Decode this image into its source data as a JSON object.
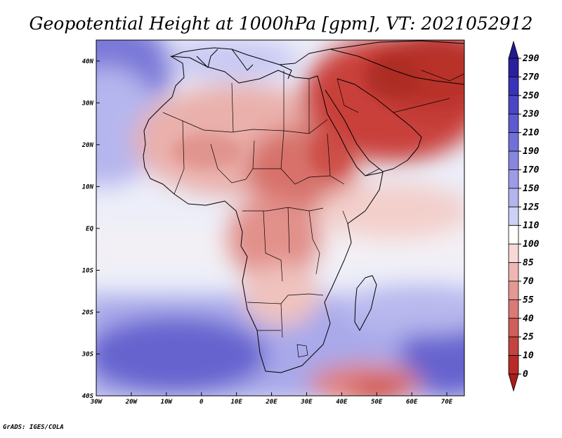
{
  "title": "Geopotential Height at 1000hPa [gpm], VT: 2021052912",
  "credit": "GrADS: IGES/COLA",
  "map": {
    "lon_range": [
      -30,
      75
    ],
    "lat_range": [
      -40,
      45
    ],
    "x_ticks": [
      "30W",
      "20W",
      "10W",
      "0",
      "10E",
      "20E",
      "30E",
      "40E",
      "50E",
      "60E",
      "70E"
    ],
    "y_ticks": [
      "40N",
      "30N",
      "20N",
      "10N",
      "EQ",
      "10S",
      "20S",
      "30S",
      "40S"
    ]
  },
  "colorbar": {
    "labels": [
      "290",
      "270",
      "250",
      "230",
      "210",
      "190",
      "170",
      "150",
      "125",
      "110",
      "100",
      "85",
      "70",
      "55",
      "40",
      "25",
      "10",
      "0"
    ],
    "colors": [
      "#2a1f9e",
      "#3a32b8",
      "#4c46c6",
      "#5e5ad0",
      "#7270d8",
      "#8786df",
      "#9c9ce6",
      "#b4b4ee",
      "#cfd0f6",
      "#ffffff",
      "#f7d8d6",
      "#eeb7b4",
      "#e49894",
      "#da7a76",
      "#d05e5a",
      "#c5433f",
      "#b82b27"
    ]
  },
  "chart_data": {
    "type": "heatmap",
    "title": "Geopotential Height at 1000hPa [gpm], VT: 2021052912",
    "variable": "Geopotential Height at 1000hPa",
    "units": "gpm",
    "valid_time": "2021052912",
    "x_range_lon": [
      -30,
      75
    ],
    "y_range_lat": [
      -40,
      45
    ],
    "colorbar_levels": [
      0,
      10,
      25,
      40,
      55,
      70,
      85,
      100,
      110,
      125,
      150,
      170,
      190,
      210,
      230,
      250,
      270,
      290
    ]
  }
}
